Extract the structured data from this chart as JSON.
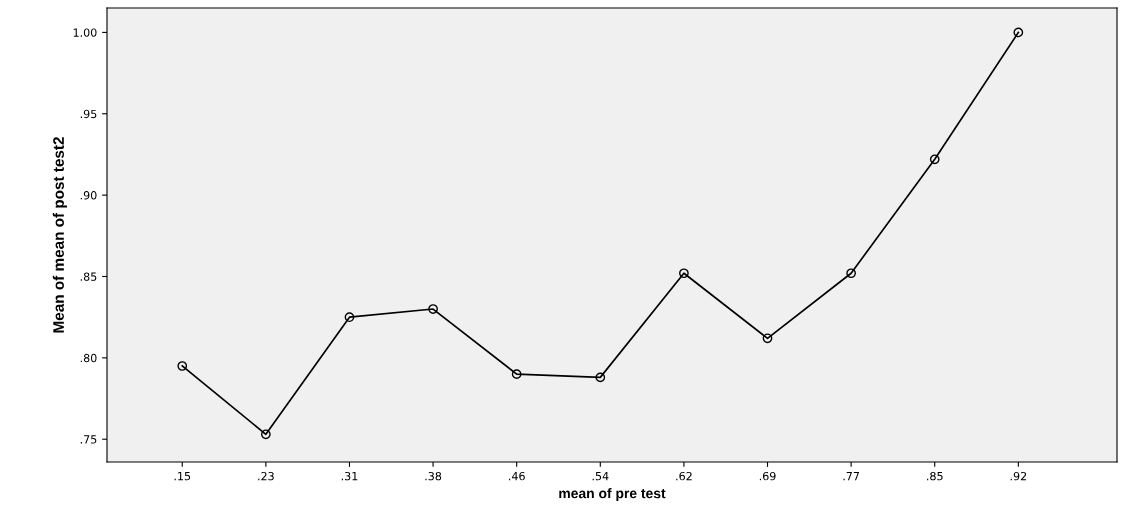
{
  "chart_data": {
    "type": "line",
    "xlabel": "mean of pre test",
    "ylabel": "Mean of mean of post test2",
    "categories": [
      ".15",
      ".23",
      ".31",
      ".38",
      ".46",
      ".54",
      ".62",
      ".69",
      ".77",
      ".85",
      ".92"
    ],
    "values": [
      0.795,
      0.753,
      0.825,
      0.83,
      0.79,
      0.788,
      0.852,
      0.812,
      0.852,
      0.922,
      1.0
    ],
    "color": "#000000",
    "marker": "circle",
    "line_style": "solid",
    "ylim": [
      0.736,
      1.015
    ],
    "yticks": [
      {
        "value": 0.75,
        "label": ".75"
      },
      {
        "value": 0.8,
        "label": ".80"
      },
      {
        "value": 0.85,
        "label": ".85"
      },
      {
        "value": 0.9,
        "label": ".90"
      },
      {
        "value": 0.95,
        "label": ".95"
      },
      {
        "value": 1.0,
        "label": "1.00"
      }
    ],
    "grid": false,
    "legend": false
  }
}
